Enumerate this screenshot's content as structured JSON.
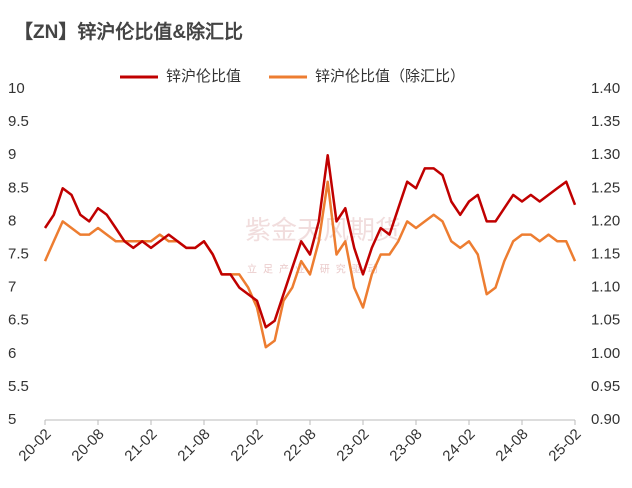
{
  "chart_data": {
    "type": "line",
    "title": "【ZN】锌沪伦比值&除汇比",
    "watermark": "紫金天风期货",
    "watermark_sub": "立足产业 研究驱动",
    "categories": [
      "20-02",
      null,
      null,
      null,
      null,
      null,
      "20-08",
      null,
      null,
      null,
      null,
      null,
      "21-02",
      null,
      null,
      null,
      null,
      null,
      "21-08",
      null,
      null,
      null,
      null,
      null,
      "22-02",
      null,
      null,
      null,
      null,
      null,
      "22-08",
      null,
      null,
      null,
      null,
      null,
      "23-02",
      null,
      null,
      null,
      null,
      null,
      "23-08",
      null,
      null,
      null,
      null,
      null,
      "24-02",
      null,
      null,
      null,
      null,
      null,
      "24-08",
      null,
      null,
      null,
      null,
      null,
      "25-02"
    ],
    "series": [
      {
        "name": "锌沪伦比值",
        "color": "#c00000",
        "axis": "y",
        "values": [
          7.9,
          8.1,
          8.5,
          8.4,
          8.1,
          8.0,
          8.2,
          8.1,
          7.9,
          7.7,
          7.6,
          7.7,
          7.6,
          7.7,
          7.8,
          7.7,
          7.6,
          7.6,
          7.7,
          7.5,
          7.2,
          7.2,
          7.0,
          6.9,
          6.8,
          6.4,
          6.5,
          6.9,
          7.3,
          7.7,
          7.5,
          8.0,
          9.0,
          8.0,
          8.2,
          7.6,
          7.2,
          7.6,
          7.9,
          7.8,
          8.2,
          8.6,
          8.5,
          8.8,
          8.8,
          8.7,
          8.3,
          8.1,
          8.3,
          8.4,
          8.0,
          8.0,
          8.2,
          8.4,
          8.3,
          8.4,
          8.3,
          8.4,
          8.5,
          8.6,
          8.25
        ]
      },
      {
        "name": "锌沪伦比值（除汇比）",
        "color": "#ed7d31",
        "axis": "y2",
        "values": [
          1.14,
          1.17,
          1.2,
          1.19,
          1.18,
          1.18,
          1.19,
          1.18,
          1.17,
          1.17,
          1.17,
          1.17,
          1.17,
          1.18,
          1.17,
          1.17,
          1.16,
          1.16,
          1.17,
          1.15,
          1.12,
          1.12,
          1.12,
          1.1,
          1.07,
          1.01,
          1.02,
          1.08,
          1.1,
          1.14,
          1.12,
          1.17,
          1.26,
          1.15,
          1.17,
          1.1,
          1.07,
          1.12,
          1.15,
          1.15,
          1.17,
          1.2,
          1.19,
          1.2,
          1.21,
          1.2,
          1.17,
          1.16,
          1.17,
          1.15,
          1.09,
          1.1,
          1.14,
          1.17,
          1.18,
          1.18,
          1.17,
          1.18,
          1.17,
          1.17,
          1.14
        ]
      }
    ],
    "ylim": [
      5,
      10
    ],
    "yticks": [
      5,
      5.5,
      6,
      6.5,
      7,
      7.5,
      8,
      8.5,
      9,
      9.5,
      10
    ],
    "y2lim": [
      0.9,
      1.4
    ],
    "y2ticks": [
      {
        "value": 0.9,
        "label": "0.90"
      },
      {
        "value": 0.95,
        "label": "0.95"
      },
      {
        "value": 1.0,
        "label": "1.00"
      },
      {
        "value": 1.05,
        "label": "1.05"
      },
      {
        "value": 1.1,
        "label": "1.10"
      },
      {
        "value": 1.15,
        "label": "1.15"
      },
      {
        "value": 1.2,
        "label": "1.20"
      },
      {
        "value": 1.25,
        "label": "1.25"
      },
      {
        "value": 1.3,
        "label": "1.30"
      },
      {
        "value": 1.35,
        "label": "1.35"
      },
      {
        "value": 1.4,
        "label": "1.40"
      }
    ],
    "legend": "top"
  }
}
